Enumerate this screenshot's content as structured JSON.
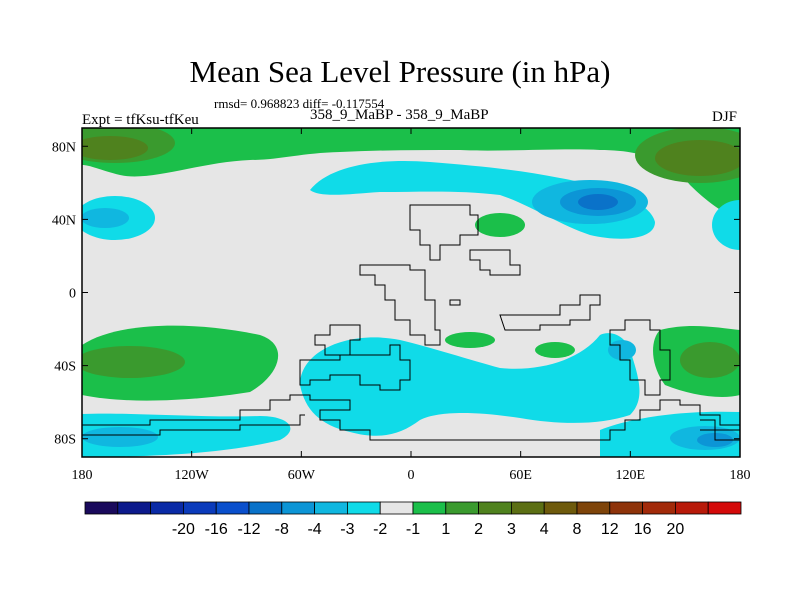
{
  "title": "Mean Sea Level Pressure (in hPa)",
  "stats": "rmsd= 0.968823 diff= -0.117554",
  "left_label": "Expt = tfKsu-tfKeu",
  "center_label": "358_9_MaBP - 358_9_MaBP",
  "right_label": "DJF",
  "map": {
    "projection": "cylindrical-equidistant",
    "lon_range": [
      -180,
      180
    ],
    "lat_range": [
      -90,
      90
    ],
    "lat_ticks": [
      {
        "value": 80,
        "label": "80N"
      },
      {
        "value": 40,
        "label": "40N"
      },
      {
        "value": 0,
        "label": "0"
      },
      {
        "value": -40,
        "label": "40S"
      },
      {
        "value": -80,
        "label": "80S"
      }
    ],
    "lon_ticks": [
      {
        "value": -180,
        "label": "180"
      },
      {
        "value": -120,
        "label": "120W"
      },
      {
        "value": -60,
        "label": "60W"
      },
      {
        "value": 0,
        "label": "0"
      },
      {
        "value": 60,
        "label": "60E"
      },
      {
        "value": 120,
        "label": "120E"
      },
      {
        "value": 180,
        "label": "180"
      }
    ]
  },
  "colorbar": {
    "colors": [
      "#1a0a5c",
      "#0c1a8c",
      "#0a2aa6",
      "#0b3bbb",
      "#0a4fcc",
      "#0a72c9",
      "#0c95d6",
      "#10b7e0",
      "#10dbe8",
      "#e6e6e6",
      "#1bbf4a",
      "#3a9a2e",
      "#4f821e",
      "#5c6f14",
      "#6e5a0c",
      "#7e440a",
      "#8e330a",
      "#a22a0a",
      "#b81a0a",
      "#d40a0a"
    ],
    "labels": [
      "-20",
      "-16",
      "-12",
      "-8",
      "-4",
      "-3",
      "-2",
      "-1",
      "1",
      "2",
      "3",
      "4",
      "8",
      "12",
      "16",
      "20"
    ]
  }
}
